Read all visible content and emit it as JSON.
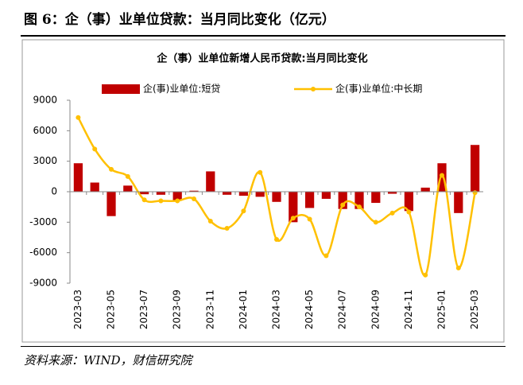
{
  "header": {
    "title": "图 6：企（事）业单位贷款：当月同比变化（亿元）"
  },
  "chart_data": {
    "type": "combo",
    "title": "企（事）业单位新增人民币贷款:当月同比变化",
    "categories": [
      "2023-03",
      null,
      "2023-05",
      null,
      "2023-07",
      null,
      "2023-09",
      null,
      "2023-11",
      null,
      "2024-01",
      null,
      "2024-03",
      null,
      "2024-05",
      null,
      "2024-07",
      null,
      "2024-09",
      null,
      "2024-11",
      null,
      "2025-01",
      null,
      "2025-03"
    ],
    "series": [
      {
        "name": "企(事)业单位:短贷",
        "type": "bar",
        "color": "#c00000",
        "values": [
          2800,
          900,
          -2400,
          600,
          -250,
          -300,
          -900,
          100,
          2000,
          -300,
          -400,
          -500,
          -1000,
          -3000,
          -1600,
          -700,
          -1700,
          -1700,
          -1100,
          -200,
          -1900,
          400,
          2800,
          -2100,
          4600
        ]
      },
      {
        "name": "企(事)业单位:中长期",
        "type": "line",
        "color": "#ffc000",
        "values": [
          7300,
          4200,
          2200,
          1500,
          -800,
          -900,
          -900,
          -700,
          -2900,
          -3600,
          -1900,
          1900,
          -4700,
          -2600,
          -2700,
          -6300,
          -1300,
          -1500,
          -3000,
          -2100,
          -2000,
          -8200,
          1600,
          -7500,
          -100
        ]
      }
    ],
    "ylim": [
      -9000,
      9000
    ],
    "yticks": [
      -9000,
      -6000,
      -3000,
      0,
      3000,
      6000,
      9000
    ]
  },
  "source": "资料来源：WIND，财信研究院"
}
